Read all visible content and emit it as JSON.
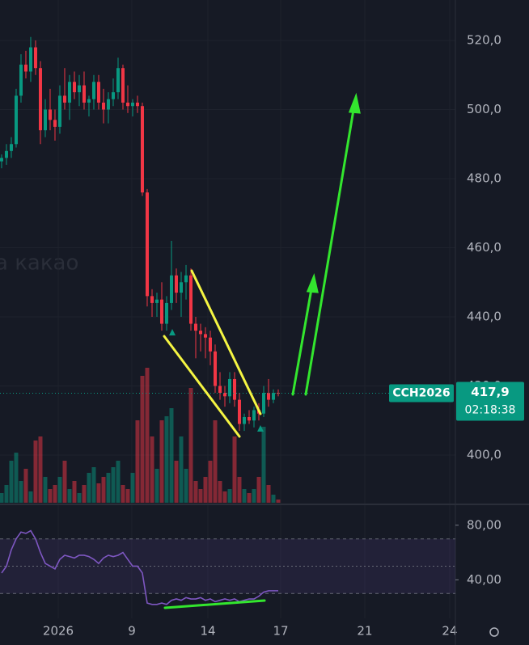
{
  "chart_data": [
    {
      "type": "candlestick",
      "symbol": "CCH2026",
      "watermark": "а какао",
      "last_price_label": "417,9",
      "countdown": "02:18:38",
      "up_color": "#089981",
      "down_color": "#f23645",
      "open": [
        485,
        486,
        488,
        490,
        504,
        513,
        511,
        518,
        512,
        494,
        500,
        497,
        495,
        504,
        502,
        508,
        505,
        507,
        502,
        503,
        508,
        502,
        500,
        503,
        505,
        512,
        502,
        501,
        502,
        501,
        476,
        446,
        444,
        445,
        438,
        444,
        452,
        447,
        450,
        452,
        438,
        436,
        435,
        434,
        430,
        420,
        418,
        417,
        422,
        416,
        409,
        411,
        410,
        413,
        412,
        418,
        416,
        418
      ],
      "high": [
        487,
        490,
        492,
        506,
        516,
        517,
        521,
        520,
        514,
        503,
        506,
        500,
        507,
        512,
        510,
        511,
        510,
        511,
        504,
        510,
        510,
        506,
        505,
        509,
        515,
        513,
        507,
        503,
        504,
        502,
        477,
        448,
        447,
        450,
        446,
        462,
        454,
        453,
        455,
        454,
        440,
        438,
        437,
        436,
        432,
        424,
        420,
        424,
        424,
        418,
        412,
        413,
        414,
        415,
        420,
        422,
        419,
        419
      ],
      "low": [
        483,
        484,
        486,
        489,
        502,
        509,
        508,
        510,
        490,
        492,
        494,
        491,
        493,
        500,
        497,
        503,
        501,
        500,
        498,
        500,
        500,
        496,
        496,
        501,
        503,
        500,
        499,
        498,
        499,
        475,
        443,
        440,
        440,
        436,
        436,
        442,
        444,
        440,
        445,
        436,
        428,
        430,
        428,
        426,
        418,
        416,
        414,
        415,
        414,
        407,
        407,
        409,
        408,
        410,
        411,
        414,
        415,
        417
      ],
      "close": [
        486,
        488,
        490,
        504,
        513,
        511,
        518,
        512,
        494,
        500,
        497,
        495,
        504,
        502,
        508,
        505,
        507,
        502,
        503,
        508,
        502,
        500,
        503,
        505,
        512,
        502,
        501,
        502,
        501,
        476,
        446,
        444,
        445,
        438,
        444,
        452,
        447,
        450,
        452,
        438,
        436,
        435,
        434,
        430,
        420,
        418,
        417,
        422,
        416,
        409,
        411,
        410,
        413,
        412,
        418,
        416,
        418,
        417.9
      ],
      "volumes": [
        12,
        22,
        52,
        62,
        27,
        42,
        14,
        77,
        82,
        32,
        17,
        22,
        32,
        52,
        17,
        27,
        12,
        22,
        37,
        44,
        24,
        32,
        37,
        44,
        52,
        22,
        17,
        37,
        102,
        157,
        167,
        82,
        42,
        102,
        107,
        117,
        52,
        82,
        42,
        142,
        27,
        17,
        32,
        52,
        102,
        27,
        14,
        17,
        82,
        32,
        17,
        12,
        17,
        32,
        94,
        22,
        10,
        4
      ],
      "volume_lim": [
        0,
        622
      ],
      "ylim": [
        386.2,
        531.7
      ],
      "yticks": [
        {
          "value": 400,
          "label": "400,0"
        },
        {
          "value": 420,
          "label": "420,0"
        },
        {
          "value": 440,
          "label": "440,0"
        },
        {
          "value": 460,
          "label": "460,0"
        },
        {
          "value": 480,
          "label": "480,0"
        },
        {
          "value": 500,
          "label": "500,0"
        },
        {
          "value": 520,
          "label": "520,0"
        }
      ],
      "xlim": [
        -0.33,
        93.5
      ],
      "xticks": [
        {
          "value": 11.67,
          "label": "2026"
        },
        {
          "value": 26.83,
          "label": "9"
        },
        {
          "value": 42.5,
          "label": "14"
        },
        {
          "value": 57.5,
          "label": "17"
        },
        {
          "value": 74.83,
          "label": "21"
        },
        {
          "value": 92.33,
          "label": "24"
        }
      ]
    },
    {
      "type": "line",
      "color": "#7e57c2",
      "values": [
        45,
        50,
        62,
        70,
        75,
        74,
        76,
        70,
        60,
        52,
        50,
        48,
        55,
        58,
        57,
        56,
        58,
        58,
        57,
        55,
        52,
        56,
        58,
        57,
        58,
        60,
        55,
        50,
        50,
        45,
        23,
        22,
        22,
        23,
        22,
        25,
        26,
        25,
        27,
        26,
        26,
        27,
        25,
        26,
        24,
        25,
        26,
        25,
        26,
        24,
        25,
        26,
        26,
        28,
        31,
        32,
        32,
        32
      ],
      "levels": [
        70,
        50,
        30
      ],
      "ylim": [
        11.8,
        94.1
      ],
      "yticks": [
        {
          "value": 40,
          "label": "40,00"
        },
        {
          "value": 80,
          "label": "80,00"
        }
      ]
    }
  ]
}
